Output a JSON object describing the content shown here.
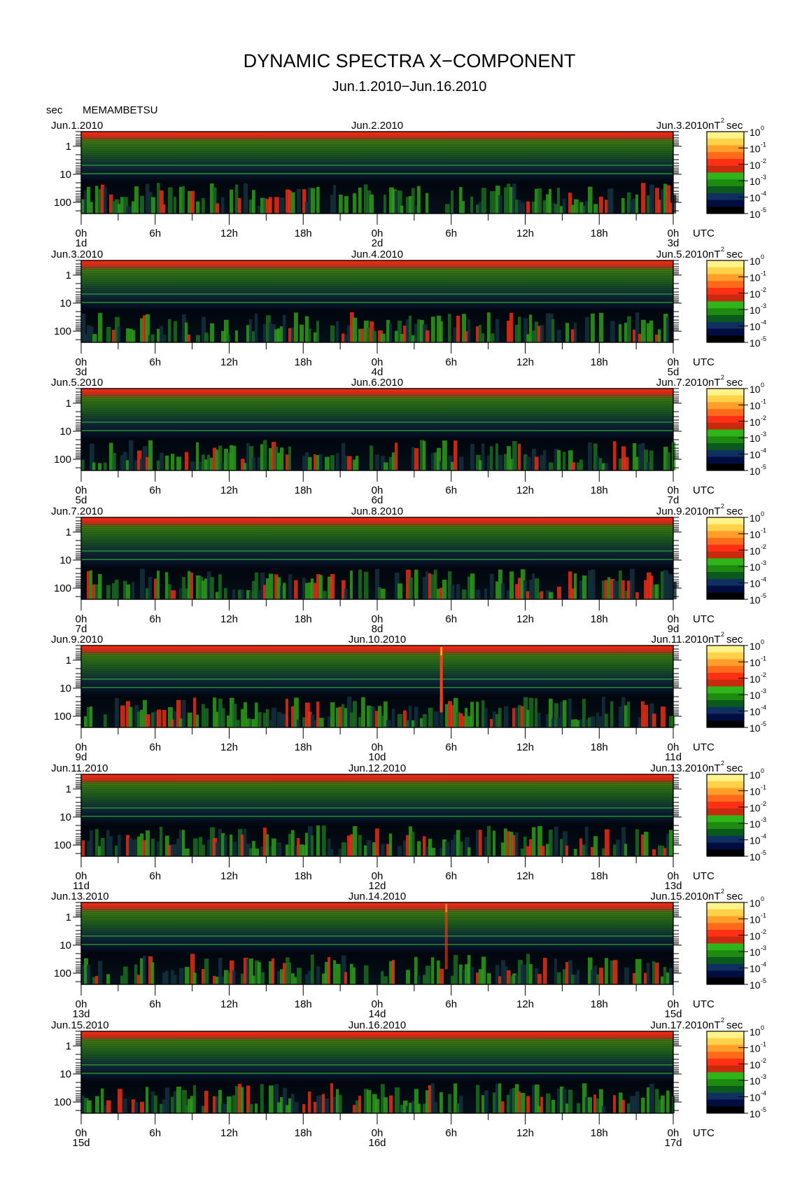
{
  "chart_data": {
    "type": "heatmap",
    "title": "DYNAMIC SPECTRA X−COMPONENT",
    "subtitle": "Jun.1.2010−Jun.16.2010",
    "station": "MEMAMBETSU",
    "y_unit": "sec",
    "x_unit": "UTC",
    "colorbar_unit_base": "nT",
    "colorbar_unit_exp": "2",
    "colorbar_unit_tail": "sec",
    "y_ticks": [
      "1",
      "10",
      "100"
    ],
    "y_scale": "log",
    "x_ticks": [
      "0h",
      "6h",
      "12h",
      "18h",
      "0h",
      "6h",
      "12h",
      "18h",
      "0h"
    ],
    "colorbar": {
      "scale": "log",
      "range": [
        1e-05,
        1
      ],
      "ticks": [
        {
          "base": "10",
          "exp": "0"
        },
        {
          "base": "10",
          "exp": "-1"
        },
        {
          "base": "10",
          "exp": "-2"
        },
        {
          "base": "10",
          "exp": "-3"
        },
        {
          "base": "10",
          "exp": "-4"
        },
        {
          "base": "10",
          "exp": "-5"
        }
      ],
      "colors": [
        "#000000",
        "#000d40",
        "#0f3060",
        "#0a5a1e",
        "#1f8a10",
        "#2fb41a",
        "#c82a10",
        "#ff3014",
        "#ff6a1a",
        "#ff9f2a",
        "#ffd24a",
        "#fff38a"
      ]
    },
    "panels": [
      {
        "day_labels": [
          "Jun.1.2010",
          "Jun.2.2010",
          "Jun.3.2010"
        ],
        "day_numbers": [
          "1d",
          "2d",
          "3d"
        ]
      },
      {
        "day_labels": [
          "Jun.3.2010",
          "Jun.4.2010",
          "Jun.5.2010"
        ],
        "day_numbers": [
          "3d",
          "4d",
          "5d"
        ]
      },
      {
        "day_labels": [
          "Jun.5.2010",
          "Jun.6.2010",
          "Jun.7.2010"
        ],
        "day_numbers": [
          "5d",
          "6d",
          "7d"
        ]
      },
      {
        "day_labels": [
          "Jun.7.2010",
          "Jun.8.2010",
          "Jun.9.2010"
        ],
        "day_numbers": [
          "7d",
          "8d",
          "9d"
        ]
      },
      {
        "day_labels": [
          "Jun.9.2010",
          "Jun.10.2010",
          "Jun.11.2010"
        ],
        "day_numbers": [
          "9d",
          "10d",
          "11d"
        ],
        "spikes": [
          {
            "hour": 29.2,
            "intensity": 1
          }
        ]
      },
      {
        "day_labels": [
          "Jun.11.2010",
          "Jun.12.2010",
          "Jun.13.2010"
        ],
        "day_numbers": [
          "11d",
          "12d",
          "13d"
        ]
      },
      {
        "day_labels": [
          "Jun.13.2010",
          "Jun.14.2010",
          "Jun.15.2010"
        ],
        "day_numbers": [
          "13d",
          "14d",
          "15d"
        ],
        "spikes": [
          {
            "hour": 29.6,
            "intensity": 0.6
          }
        ]
      },
      {
        "day_labels": [
          "Jun.15.2010",
          "Jun.16.2010",
          "Jun.17.2010"
        ],
        "day_numbers": [
          "15d",
          "16d",
          "17d"
        ]
      }
    ]
  }
}
